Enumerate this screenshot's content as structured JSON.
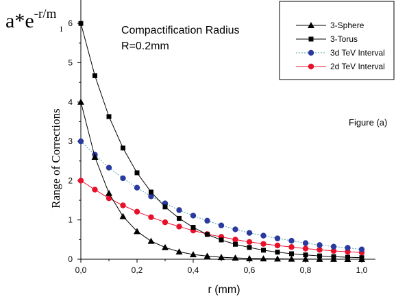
{
  "chart_data": {
    "type": "line",
    "formula": {
      "base": "a*e",
      "exponent": "-r/m",
      "subscript": "1"
    },
    "annotation_lines": [
      "Compactification Radius",
      "R=0.2mm"
    ],
    "figure_label": "Figure (a)",
    "xlabel": "r (mm)",
    "ylabel": "Range of Corrections",
    "xlim": [
      0,
      1.0
    ],
    "ylim": [
      0,
      6.3
    ],
    "x_ticks": [
      0.0,
      0.2,
      0.4,
      0.6,
      0.8,
      1.0
    ],
    "x_tick_labels": [
      "0,0",
      "0,2",
      "0,4",
      "0,6",
      "0,8",
      "1,0"
    ],
    "y_ticks": [
      0,
      1,
      2,
      3,
      4,
      5,
      6
    ],
    "y_tick_labels": [
      "0",
      "1",
      "2",
      "3",
      "4",
      "5",
      "6"
    ],
    "grid": false,
    "legend_position": "top-right",
    "x": [
      0.0,
      0.05,
      0.1,
      0.15,
      0.2,
      0.25,
      0.3,
      0.35,
      0.4,
      0.45,
      0.5,
      0.55,
      0.6,
      0.65,
      0.7,
      0.75,
      0.8,
      0.85,
      0.9,
      0.95,
      1.0
    ],
    "series": [
      {
        "name": "3-Sphere",
        "marker": "triangle",
        "color": "#000000",
        "line_style": "solid",
        "values": [
          4.0,
          2.6,
          1.68,
          1.09,
          0.71,
          0.46,
          0.3,
          0.19,
          0.12,
          0.08,
          0.05,
          0.035,
          0.02,
          0.015,
          0.01,
          0.007,
          0.005,
          0.003,
          0.002,
          0.001,
          0.001
        ]
      },
      {
        "name": "3-Torus",
        "marker": "square",
        "color": "#000000",
        "line_style": "solid",
        "values": [
          6.0,
          4.67,
          3.63,
          2.83,
          2.2,
          1.71,
          1.33,
          1.04,
          0.81,
          0.63,
          0.49,
          0.38,
          0.3,
          0.23,
          0.18,
          0.14,
          0.11,
          0.085,
          0.066,
          0.051,
          0.04
        ]
      },
      {
        "name": "3d TeV Interval",
        "marker": "circle",
        "color": "#2b3a9e",
        "line_color": "#4aa3a8",
        "line_style": "dotted",
        "values": [
          3.0,
          2.66,
          2.33,
          2.06,
          1.82,
          1.6,
          1.42,
          1.25,
          1.11,
          0.98,
          0.86,
          0.76,
          0.67,
          0.6,
          0.53,
          0.47,
          0.41,
          0.36,
          0.32,
          0.29,
          0.25
        ]
      },
      {
        "name": "2d TeV Interval",
        "marker": "circle",
        "color": "#e8102a",
        "line_color": "#e8102a",
        "line_style": "solid",
        "values": [
          2.0,
          1.77,
          1.55,
          1.37,
          1.21,
          1.07,
          0.94,
          0.83,
          0.73,
          0.64,
          0.57,
          0.5,
          0.44,
          0.39,
          0.35,
          0.31,
          0.27,
          0.24,
          0.21,
          0.19,
          0.17
        ]
      }
    ]
  }
}
